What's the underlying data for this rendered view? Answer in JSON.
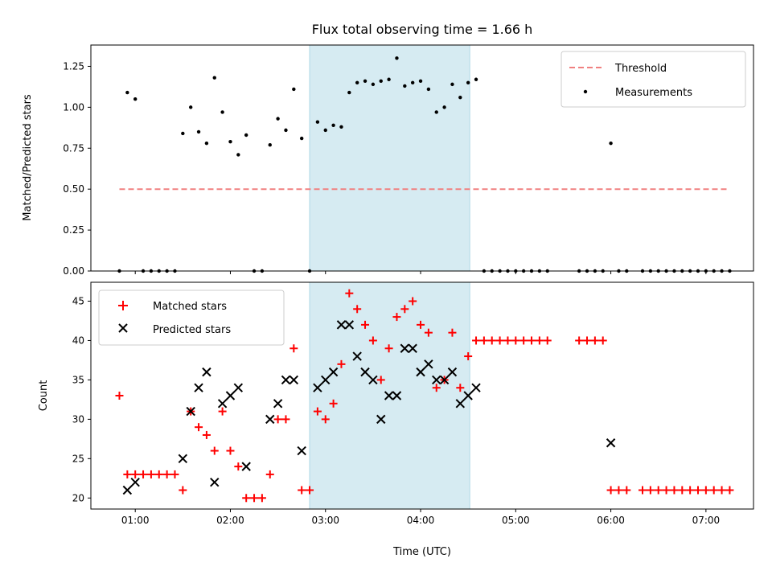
{
  "chart_data": [
    {
      "type": "scatter",
      "title": "Flux total observing time = 1.66 h",
      "xlabel": "",
      "ylabel": "Matched/Predicted stars",
      "xlim": [
        "00:32",
        "07:30"
      ],
      "ylim": [
        0,
        1.38
      ],
      "yticks": [
        "0.00",
        "0.25",
        "0.50",
        "0.75",
        "1.00",
        "1.25"
      ],
      "grid": false,
      "legend": "top-right",
      "shaded_interval": [
        "02:50",
        "04:31"
      ],
      "threshold": {
        "name": "Threshold",
        "value": 0.5,
        "x": [
          "00:50",
          "07:13"
        ],
        "color": "#f08080"
      },
      "series": [
        {
          "name": "Measurements",
          "color": "#000000",
          "points": [
            [
              "00:50",
              0
            ],
            [
              "00:55",
              1.09
            ],
            [
              "01:00",
              1.05
            ],
            [
              "01:05",
              0
            ],
            [
              "01:10",
              0
            ],
            [
              "01:15",
              0
            ],
            [
              "01:20",
              0
            ],
            [
              "01:25",
              0
            ],
            [
              "01:30",
              0.84
            ],
            [
              "01:35",
              1.0
            ],
            [
              "01:40",
              0.85
            ],
            [
              "01:45",
              0.78
            ],
            [
              "01:50",
              1.18
            ],
            [
              "01:55",
              0.97
            ],
            [
              "02:00",
              0.79
            ],
            [
              "02:05",
              0.71
            ],
            [
              "02:10",
              0.83
            ],
            [
              "02:15",
              0
            ],
            [
              "02:20",
              0
            ],
            [
              "02:25",
              0.77
            ],
            [
              "02:30",
              0.93
            ],
            [
              "02:35",
              0.86
            ],
            [
              "02:40",
              1.11
            ],
            [
              "02:45",
              0.81
            ],
            [
              "02:50",
              0
            ],
            [
              "02:55",
              0.91
            ],
            [
              "03:00",
              0.86
            ],
            [
              "03:05",
              0.89
            ],
            [
              "03:10",
              0.88
            ],
            [
              "03:15",
              1.09
            ],
            [
              "03:20",
              1.15
            ],
            [
              "03:25",
              1.16
            ],
            [
              "03:30",
              1.14
            ],
            [
              "03:35",
              1.16
            ],
            [
              "03:40",
              1.17
            ],
            [
              "03:45",
              1.3
            ],
            [
              "03:50",
              1.13
            ],
            [
              "03:55",
              1.15
            ],
            [
              "04:00",
              1.16
            ],
            [
              "04:05",
              1.11
            ],
            [
              "04:10",
              0.97
            ],
            [
              "04:15",
              1.0
            ],
            [
              "04:20",
              1.14
            ],
            [
              "04:25",
              1.06
            ],
            [
              "04:30",
              1.15
            ],
            [
              "04:35",
              1.17
            ],
            [
              "04:40",
              0
            ],
            [
              "04:45",
              0
            ],
            [
              "04:50",
              0
            ],
            [
              "04:55",
              0
            ],
            [
              "05:00",
              0
            ],
            [
              "05:05",
              0
            ],
            [
              "05:10",
              0
            ],
            [
              "05:15",
              0
            ],
            [
              "05:20",
              0
            ],
            [
              "05:40",
              0
            ],
            [
              "05:45",
              0
            ],
            [
              "05:50",
              0
            ],
            [
              "05:55",
              0
            ],
            [
              "06:00",
              0.78
            ],
            [
              "06:05",
              0
            ],
            [
              "06:10",
              0
            ],
            [
              "06:20",
              0
            ],
            [
              "06:25",
              0
            ],
            [
              "06:30",
              0
            ],
            [
              "06:35",
              0
            ],
            [
              "06:40",
              0
            ],
            [
              "06:45",
              0
            ],
            [
              "06:50",
              0
            ],
            [
              "06:55",
              0
            ],
            [
              "07:00",
              0
            ],
            [
              "07:05",
              0
            ],
            [
              "07:10",
              0
            ],
            [
              "07:15",
              0
            ]
          ]
        }
      ]
    },
    {
      "type": "scatter",
      "title": "",
      "xlabel": "Time (UTC)",
      "ylabel": "Count",
      "xlim": [
        "00:32",
        "07:30"
      ],
      "ylim": [
        18.6,
        47.4
      ],
      "yticks": [
        "20",
        "25",
        "30",
        "35",
        "40",
        "45"
      ],
      "xticks": [
        "01:00",
        "02:00",
        "03:00",
        "04:00",
        "05:00",
        "06:00",
        "07:00"
      ],
      "grid": false,
      "legend": "top-left",
      "shaded_interval": [
        "02:50",
        "04:31"
      ],
      "series": [
        {
          "name": "Matched stars",
          "marker": "plus",
          "color": "#ff0000",
          "points": [
            [
              "00:50",
              33
            ],
            [
              "00:55",
              23
            ],
            [
              "01:00",
              23
            ],
            [
              "01:05",
              23
            ],
            [
              "01:10",
              23
            ],
            [
              "01:15",
              23
            ],
            [
              "01:20",
              23
            ],
            [
              "01:25",
              23
            ],
            [
              "01:30",
              21
            ],
            [
              "01:35",
              31
            ],
            [
              "01:40",
              29
            ],
            [
              "01:45",
              28
            ],
            [
              "01:50",
              26
            ],
            [
              "01:55",
              31
            ],
            [
              "02:00",
              26
            ],
            [
              "02:05",
              24
            ],
            [
              "02:10",
              20
            ],
            [
              "02:15",
              20
            ],
            [
              "02:20",
              20
            ],
            [
              "02:25",
              23
            ],
            [
              "02:30",
              30
            ],
            [
              "02:35",
              30
            ],
            [
              "02:40",
              39
            ],
            [
              "02:45",
              21
            ],
            [
              "02:50",
              21
            ],
            [
              "02:55",
              31
            ],
            [
              "03:00",
              30
            ],
            [
              "03:05",
              32
            ],
            [
              "03:10",
              37
            ],
            [
              "03:15",
              46
            ],
            [
              "03:20",
              44
            ],
            [
              "03:25",
              42
            ],
            [
              "03:30",
              40
            ],
            [
              "03:35",
              35
            ],
            [
              "03:40",
              39
            ],
            [
              "03:45",
              43
            ],
            [
              "03:50",
              44
            ],
            [
              "03:55",
              45
            ],
            [
              "04:00",
              42
            ],
            [
              "04:05",
              41
            ],
            [
              "04:10",
              34
            ],
            [
              "04:15",
              35
            ],
            [
              "04:20",
              41
            ],
            [
              "04:25",
              34
            ],
            [
              "04:30",
              38
            ],
            [
              "04:35",
              40
            ],
            [
              "04:40",
              40
            ],
            [
              "04:45",
              40
            ],
            [
              "04:50",
              40
            ],
            [
              "04:55",
              40
            ],
            [
              "05:00",
              40
            ],
            [
              "05:05",
              40
            ],
            [
              "05:10",
              40
            ],
            [
              "05:15",
              40
            ],
            [
              "05:20",
              40
            ],
            [
              "05:40",
              40
            ],
            [
              "05:45",
              40
            ],
            [
              "05:50",
              40
            ],
            [
              "05:55",
              40
            ],
            [
              "06:00",
              21
            ],
            [
              "06:05",
              21
            ],
            [
              "06:10",
              21
            ],
            [
              "06:20",
              21
            ],
            [
              "06:25",
              21
            ],
            [
              "06:30",
              21
            ],
            [
              "06:35",
              21
            ],
            [
              "06:40",
              21
            ],
            [
              "06:45",
              21
            ],
            [
              "06:50",
              21
            ],
            [
              "06:55",
              21
            ],
            [
              "07:00",
              21
            ],
            [
              "07:05",
              21
            ],
            [
              "07:10",
              21
            ],
            [
              "07:15",
              21
            ]
          ]
        },
        {
          "name": "Predicted stars",
          "marker": "x",
          "color": "#000000",
          "points": [
            [
              "00:55",
              21
            ],
            [
              "01:00",
              22
            ],
            [
              "01:30",
              25
            ],
            [
              "01:35",
              31
            ],
            [
              "01:40",
              34
            ],
            [
              "01:45",
              36
            ],
            [
              "01:50",
              22
            ],
            [
              "01:55",
              32
            ],
            [
              "02:00",
              33
            ],
            [
              "02:05",
              34
            ],
            [
              "02:10",
              24
            ],
            [
              "02:25",
              30
            ],
            [
              "02:30",
              32
            ],
            [
              "02:35",
              35
            ],
            [
              "02:40",
              35
            ],
            [
              "02:45",
              26
            ],
            [
              "02:55",
              34
            ],
            [
              "03:00",
              35
            ],
            [
              "03:05",
              36
            ],
            [
              "03:10",
              42
            ],
            [
              "03:15",
              42
            ],
            [
              "03:20",
              38
            ],
            [
              "03:25",
              36
            ],
            [
              "03:30",
              35
            ],
            [
              "03:35",
              30
            ],
            [
              "03:40",
              33
            ],
            [
              "03:45",
              33
            ],
            [
              "03:50",
              39
            ],
            [
              "03:55",
              39
            ],
            [
              "04:00",
              36
            ],
            [
              "04:05",
              37
            ],
            [
              "04:10",
              35
            ],
            [
              "04:15",
              35
            ],
            [
              "04:20",
              36
            ],
            [
              "04:25",
              32
            ],
            [
              "04:30",
              33
            ],
            [
              "04:35",
              34
            ],
            [
              "06:00",
              27
            ]
          ]
        }
      ]
    }
  ]
}
